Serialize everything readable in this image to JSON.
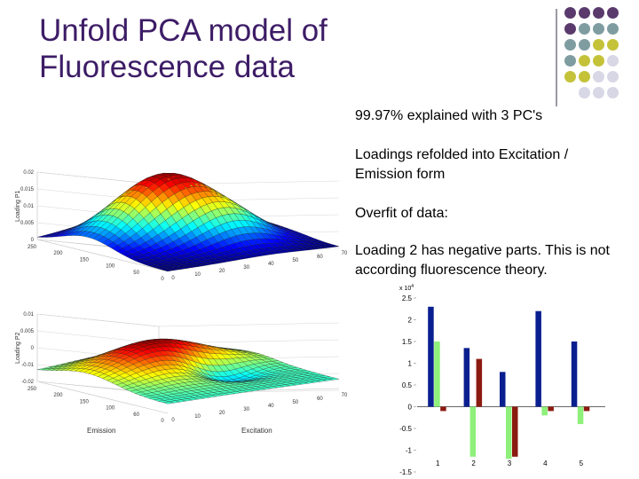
{
  "slide": {
    "title_line1": "Unfold PCA model of",
    "title_line2": "Fluorescence data",
    "bullets": [
      "99.97% explained with 3 PC's",
      "Loadings refolded into Excitation / Emission form",
      "Overfit of data:",
      "Loading 2 has negative parts. This is not according fluorescence theory."
    ],
    "colors": {
      "title": "#3d1c66",
      "dot_purple": "#5a3a6c",
      "dot_teal": "#7f9da0",
      "dot_olive": "#c4c239",
      "dot_light": "#d7d7e6"
    }
  },
  "surface1": {
    "zlabel": "Loading P1",
    "zticks": [
      "0.02",
      "0.015",
      "0.01",
      "0.005",
      "0"
    ],
    "xticks": [
      "250",
      "200",
      "150",
      "100",
      "50",
      "0"
    ],
    "yticks": [
      "0",
      "10",
      "20",
      "30",
      "40",
      "50",
      "60",
      "70"
    ]
  },
  "surface2": {
    "zlabel": "Loading P2",
    "zticks": [
      "0.01",
      "0.005",
      "0",
      "-0.01",
      "-0.02"
    ],
    "xticks": [
      "250",
      "200",
      "150",
      "100",
      "60",
      "0"
    ],
    "yticks": [
      "0",
      "10",
      "20",
      "30",
      "40",
      "50",
      "60",
      "70"
    ],
    "xlabel": "Emission",
    "ylabel": "Excitation"
  },
  "chart_data": {
    "type": "bar",
    "categories": [
      "1",
      "2",
      "3",
      "4",
      "5"
    ],
    "series": [
      {
        "color": "#0a1f8f",
        "values": [
          2.3,
          1.35,
          0.8,
          2.2,
          1.5
        ]
      },
      {
        "color": "#8ef07a",
        "values": [
          1.5,
          -1.15,
          -1.2,
          -0.2,
          -0.4
        ]
      },
      {
        "color": "#8b1a10",
        "values": [
          -0.1,
          1.1,
          -1.15,
          -0.1,
          -0.1
        ]
      }
    ],
    "ylim": [
      -1.5,
      2.5
    ],
    "yticks": [
      "2.5",
      "2",
      "1.5",
      "1",
      "0.5",
      "0",
      "-0.5",
      "-1",
      "-1.5"
    ],
    "yscale_label": "x 10",
    "yscale_exp": "4"
  }
}
